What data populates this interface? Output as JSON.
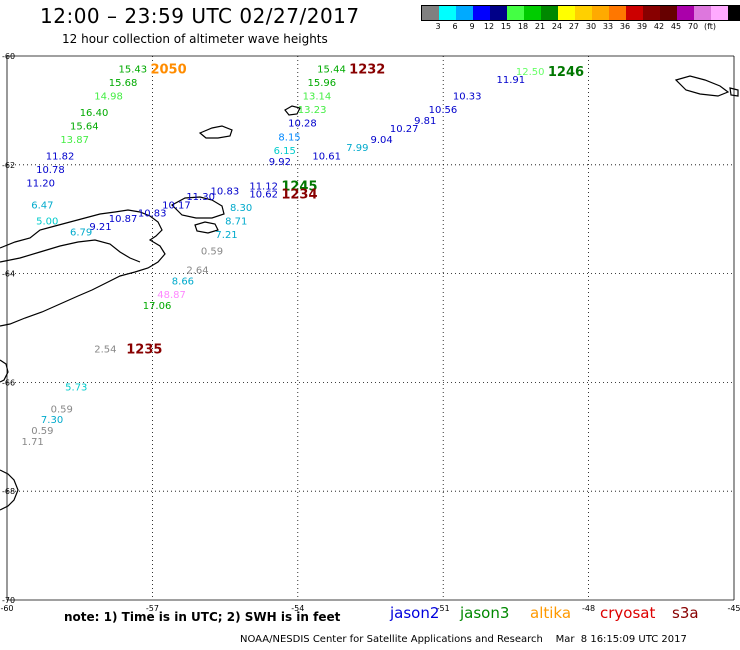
{
  "header": {
    "title": "12:00 – 23:59 UTC 02/27/2017",
    "subtitle": "12 hour collection of altimeter wave heights"
  },
  "scale": {
    "colors": [
      "#808080",
      "#00ffff",
      "#00aaff",
      "#0000ff",
      "#000088",
      "#44ff44",
      "#00cc00",
      "#008800",
      "#ffff00",
      "#ffd000",
      "#ffaa00",
      "#ff7700",
      "#cc0000",
      "#880000",
      "#660000",
      "#aa00aa",
      "#dd77dd",
      "#ffaaff",
      "#000000"
    ],
    "labels": [
      "3",
      "6",
      "9",
      "12",
      "15",
      "18",
      "21",
      "24",
      "27",
      "30",
      "33",
      "36",
      "39",
      "42",
      "45",
      "70",
      "(ft)"
    ]
  },
  "axes": {
    "lat_labels": [
      "-60",
      "-62",
      "-64",
      "-66",
      "-68",
      "-70"
    ],
    "lon_labels": [
      "-60",
      "-57",
      "-54",
      "-51",
      "-48",
      "-45"
    ]
  },
  "footer": {
    "note": "note: 1) Time is in UTC; 2) SWH is in feet",
    "credit": "NOAA/NESDIS Center for Satellite Applications and Research    Mar  8 16:15:09 UTC 2017",
    "satellites": [
      {
        "name": "jason2",
        "color": "#0000dd"
      },
      {
        "name": "jason3",
        "color": "#008800"
      },
      {
        "name": "altika",
        "color": "#ff9900"
      },
      {
        "name": "cryosat",
        "color": "#dd0000"
      },
      {
        "name": "s3a",
        "color": "#880000"
      }
    ]
  },
  "tracks": [
    {
      "time": "2050",
      "time_color": "#ff8c00",
      "values": [
        {
          "v": "15.43",
          "c": "#00aa00",
          "lon": -57.7,
          "lat": -60.3
        },
        {
          "v": "15.68",
          "c": "#00aa00",
          "lon": -57.9,
          "lat": -60.55
        },
        {
          "v": "14.98",
          "c": "#44ee44",
          "lon": -58.2,
          "lat": -60.8
        },
        {
          "v": "16.40",
          "c": "#00aa00",
          "lon": -58.5,
          "lat": -61.1
        },
        {
          "v": "15.64",
          "c": "#00aa00",
          "lon": -58.7,
          "lat": -61.35
        },
        {
          "v": "13.87",
          "c": "#44ee44",
          "lon": -58.9,
          "lat": -61.6
        },
        {
          "v": "11.82",
          "c": "#0000cc",
          "lon": -59.2,
          "lat": -61.9
        },
        {
          "v": "10.78",
          "c": "#0000cc",
          "lon": -59.4,
          "lat": -62.15
        },
        {
          "v": "11.20",
          "c": "#0000cc",
          "lon": -59.6,
          "lat": -62.4
        }
      ]
    },
    {
      "time": "1232",
      "time_color": "#880000",
      "values": [
        {
          "v": "15.44",
          "c": "#00aa00",
          "lon": -53.6,
          "lat": -60.3
        },
        {
          "v": "15.96",
          "c": "#00aa00",
          "lon": -53.8,
          "lat": -60.55
        },
        {
          "v": "13.14",
          "c": "#44ee44",
          "lon": -53.9,
          "lat": -60.8
        },
        {
          "v": "13.23",
          "c": "#44ee44",
          "lon": -54.0,
          "lat": -61.05
        },
        {
          "v": "10.28",
          "c": "#0000cc",
          "lon": -54.2,
          "lat": -61.3
        },
        {
          "v": "8.15",
          "c": "#0088ff",
          "lon": -54.4,
          "lat": -61.55
        },
        {
          "v": "6.15",
          "c": "#00cccc",
          "lon": -54.5,
          "lat": -61.8
        },
        {
          "v": "9.92",
          "c": "#0000cc",
          "lon": -54.6,
          "lat": -62.0
        }
      ]
    },
    {
      "time": "1246",
      "time_color": "#007700",
      "values": [
        {
          "v": "12.50",
          "c": "#66ff66",
          "lon": -49.5,
          "lat": -60.35
        },
        {
          "v": "11.91",
          "c": "#0000cc",
          "lon": -49.9,
          "lat": -60.5
        },
        {
          "v": "10.33",
          "c": "#0000cc",
          "lon": -50.8,
          "lat": -60.8
        },
        {
          "v": "10.56",
          "c": "#0000cc",
          "lon": -51.3,
          "lat": -61.05
        },
        {
          "v": "9.81",
          "c": "#0000cc",
          "lon": -51.6,
          "lat": -61.25
        },
        {
          "v": "10.27",
          "c": "#0000cc",
          "lon": -52.1,
          "lat": -61.4
        },
        {
          "v": "9.04",
          "c": "#0000cc",
          "lon": -52.5,
          "lat": -61.6
        },
        {
          "v": "7.99",
          "c": "#00aacc",
          "lon": -53.0,
          "lat": -61.75
        },
        {
          "v": "10.61",
          "c": "#0000cc",
          "lon": -53.7,
          "lat": -61.9
        }
      ]
    },
    {
      "time": "1245",
      "time_color": "#007700",
      "values": [
        {
          "v": "11.12",
          "c": "#0000cc",
          "lon": -55.0,
          "lat": -62.45
        },
        {
          "v": "10.83",
          "c": "#0000cc",
          "lon": -55.8,
          "lat": -62.55
        },
        {
          "v": "11.30",
          "c": "#0000cc",
          "lon": -56.3,
          "lat": -62.65
        },
        {
          "v": "10.17",
          "c": "#0000cc",
          "lon": -56.8,
          "lat": -62.8
        },
        {
          "v": "10.83",
          "c": "#0000cc",
          "lon": -57.3,
          "lat": -62.95
        },
        {
          "v": "10.87",
          "c": "#0000cc",
          "lon": -57.9,
          "lat": -63.05
        },
        {
          "v": "9.21",
          "c": "#0000cc",
          "lon": -58.3,
          "lat": -63.2
        },
        {
          "v": "6.79",
          "c": "#00aacc",
          "lon": -58.7,
          "lat": -63.3
        },
        {
          "v": "5.00",
          "c": "#00cccc",
          "lon": -59.4,
          "lat": -63.1
        },
        {
          "v": "6.47",
          "c": "#00aacc",
          "lon": -59.5,
          "lat": -62.8
        }
      ]
    },
    {
      "time": "1234",
      "time_color": "#880000",
      "values": [
        {
          "v": "10.62",
          "c": "#0000cc",
          "lon": -55.0,
          "lat": -62.6
        },
        {
          "v": "8.30",
          "c": "#00aacc",
          "lon": -55.4,
          "lat": -62.85
        },
        {
          "v": "8.71",
          "c": "#00aacc",
          "lon": -55.5,
          "lat": -63.1
        },
        {
          "v": "7.21",
          "c": "#00aacc",
          "lon": -55.7,
          "lat": -63.35
        },
        {
          "v": "0.59",
          "c": "#888888",
          "lon": -56.0,
          "lat": -63.65
        },
        {
          "v": "2.64",
          "c": "#888888",
          "lon": -56.3,
          "lat": -64.0
        },
        {
          "v": "8.66",
          "c": "#00aacc",
          "lon": -56.6,
          "lat": -64.2
        },
        {
          "v": "48.87",
          "c": "#ff88ff",
          "lon": -56.9,
          "lat": -64.45
        },
        {
          "v": "17.06",
          "c": "#00aa00",
          "lon": -57.2,
          "lat": -64.65
        }
      ]
    },
    {
      "time": "1235",
      "time_color": "#880000",
      "values": [
        {
          "v": "2.54",
          "c": "#888888",
          "lon": -58.2,
          "lat": -65.45
        },
        {
          "v": "5.73",
          "c": "#00cccc",
          "lon": -58.8,
          "lat": -66.15
        },
        {
          "v": "0.59",
          "c": "#888888",
          "lon": -59.1,
          "lat": -66.55
        },
        {
          "v": "7.30",
          "c": "#00aacc",
          "lon": -59.3,
          "lat": -66.75
        },
        {
          "v": "0.59",
          "c": "#888888",
          "lon": -59.5,
          "lat": -66.95
        },
        {
          "v": "1.71",
          "c": "#888888",
          "lon": -59.7,
          "lat": -67.15
        }
      ]
    }
  ]
}
